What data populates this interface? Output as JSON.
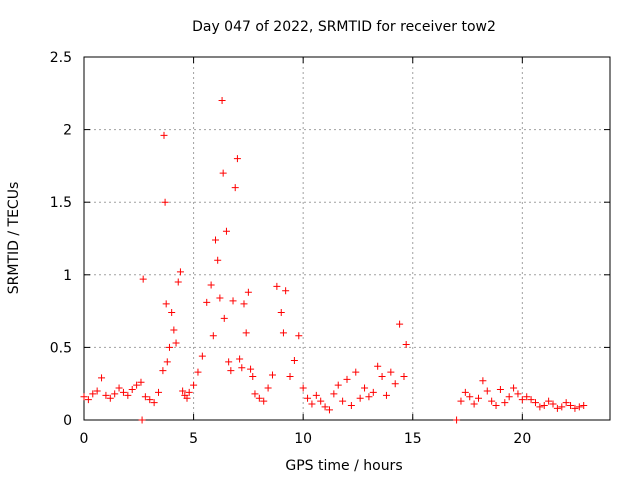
{
  "chart_data": {
    "type": "scatter",
    "title": "Day 047 of 2022, SRMTID for receiver tow2",
    "xlabel": "GPS time / hours",
    "ylabel": "SRMTID / TECUs",
    "xlim": [
      0,
      24
    ],
    "ylim": [
      0,
      2.5
    ],
    "xticks": [
      0,
      5,
      10,
      15,
      20
    ],
    "yticks": [
      0,
      0.5,
      1,
      1.5,
      2,
      2.5
    ],
    "xtick_labels": [
      "0",
      "5",
      "10",
      "15",
      "20"
    ],
    "ytick_labels": [
      "0",
      "0.5",
      "1",
      "1.5",
      "2",
      "2.5"
    ],
    "grid": true,
    "marker": "+",
    "marker_color": "#ff0000",
    "series": [
      {
        "name": "tow2",
        "x": [
          0.0,
          0.2,
          0.4,
          0.6,
          0.8,
          1.0,
          1.2,
          1.4,
          1.6,
          1.8,
          2.0,
          2.2,
          2.4,
          2.6,
          2.65,
          2.7,
          2.8,
          3.0,
          3.2,
          3.4,
          3.6,
          3.65,
          3.7,
          3.75,
          3.8,
          3.9,
          4.0,
          4.1,
          4.2,
          4.3,
          4.4,
          4.5,
          4.6,
          4.7,
          4.8,
          5.0,
          5.2,
          5.4,
          5.6,
          5.8,
          5.9,
          6.0,
          6.1,
          6.2,
          6.3,
          6.35,
          6.4,
          6.5,
          6.6,
          6.7,
          6.8,
          6.9,
          7.0,
          7.1,
          7.2,
          7.3,
          7.4,
          7.5,
          7.6,
          7.7,
          7.8,
          8.0,
          8.2,
          8.4,
          8.6,
          8.8,
          9.0,
          9.1,
          9.2,
          9.4,
          9.6,
          9.8,
          10.0,
          10.2,
          10.4,
          10.6,
          10.8,
          11.0,
          11.2,
          11.4,
          11.6,
          11.8,
          12.0,
          12.2,
          12.4,
          12.6,
          12.8,
          13.0,
          13.2,
          13.4,
          13.6,
          13.8,
          14.0,
          14.2,
          14.4,
          14.6,
          14.7,
          17.0,
          17.2,
          17.4,
          17.6,
          17.8,
          18.0,
          18.2,
          18.4,
          18.6,
          18.8,
          19.0,
          19.2,
          19.4,
          19.6,
          19.8,
          20.0,
          20.2,
          20.4,
          20.6,
          20.8,
          21.0,
          21.2,
          21.4,
          21.6,
          21.8,
          22.0,
          22.2,
          22.4,
          22.6,
          22.8
        ],
        "y": [
          0.16,
          0.14,
          0.18,
          0.2,
          0.29,
          0.17,
          0.15,
          0.18,
          0.22,
          0.19,
          0.17,
          0.21,
          0.24,
          0.26,
          0.0,
          0.97,
          0.16,
          0.14,
          0.12,
          0.19,
          0.34,
          1.96,
          1.5,
          0.8,
          0.4,
          0.5,
          0.74,
          0.62,
          0.53,
          0.95,
          1.02,
          0.2,
          0.17,
          0.15,
          0.19,
          0.24,
          0.33,
          0.44,
          0.81,
          0.93,
          0.58,
          1.24,
          1.1,
          0.84,
          2.2,
          1.7,
          0.7,
          1.3,
          0.4,
          0.34,
          0.82,
          1.6,
          1.8,
          0.42,
          0.36,
          0.8,
          0.6,
          0.88,
          0.35,
          0.3,
          0.18,
          0.15,
          0.13,
          0.22,
          0.31,
          0.92,
          0.74,
          0.6,
          0.89,
          0.3,
          0.41,
          0.58,
          0.22,
          0.15,
          0.11,
          0.17,
          0.13,
          0.09,
          0.07,
          0.18,
          0.24,
          0.13,
          0.28,
          0.1,
          0.33,
          0.15,
          0.22,
          0.16,
          0.19,
          0.37,
          0.3,
          0.17,
          0.33,
          0.25,
          0.66,
          0.3,
          0.52,
          0.0,
          0.13,
          0.19,
          0.16,
          0.11,
          0.15,
          0.27,
          0.2,
          0.13,
          0.1,
          0.21,
          0.12,
          0.16,
          0.22,
          0.18,
          0.14,
          0.16,
          0.14,
          0.12,
          0.09,
          0.1,
          0.13,
          0.11,
          0.08,
          0.09,
          0.12,
          0.1,
          0.08,
          0.09,
          0.1
        ]
      }
    ]
  }
}
